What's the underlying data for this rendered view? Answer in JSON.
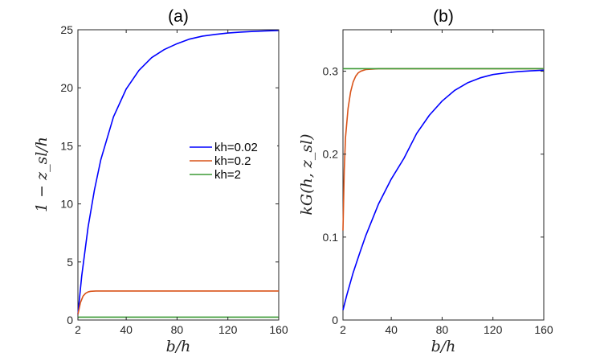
{
  "figure": {
    "background": "#ffffff"
  },
  "legend_entries": [
    "kh=0.02",
    "kh=0.2",
    "kh=2"
  ],
  "chart_data": [
    {
      "type": "line",
      "title": "(a)",
      "xlabel": "b/h",
      "ylabel": "1 − z_sl/h",
      "xlim": [
        2,
        160
      ],
      "ylim": [
        0,
        25
      ],
      "xticks": [
        2,
        40,
        80,
        120,
        160
      ],
      "xtick_labels": [
        "2",
        "40",
        "80",
        "120",
        "160"
      ],
      "yticks": [
        0,
        5,
        10,
        15,
        20,
        25
      ],
      "ytick_labels": [
        "0",
        "5",
        "10",
        "15",
        "20",
        "25"
      ],
      "grid": false,
      "legend_position": "right-middle",
      "series": [
        {
          "name": "kh=0.02",
          "color": "#0000ff",
          "x": [
            2,
            5,
            10,
            15,
            20,
            30,
            40,
            50,
            60,
            70,
            80,
            90,
            100,
            110,
            120,
            130,
            140,
            150,
            160
          ],
          "y": [
            0.5,
            3.8,
            8.0,
            11.2,
            13.8,
            17.5,
            19.9,
            21.5,
            22.6,
            23.3,
            23.8,
            24.2,
            24.45,
            24.6,
            24.72,
            24.8,
            24.86,
            24.9,
            24.93
          ]
        },
        {
          "name": "kh=0.2",
          "color": "#d95319",
          "x": [
            2,
            4,
            6,
            8,
            10,
            12,
            16,
            20,
            40,
            80,
            120,
            160
          ],
          "y": [
            0.5,
            1.5,
            2.05,
            2.3,
            2.42,
            2.47,
            2.5,
            2.5,
            2.5,
            2.5,
            2.5,
            2.5
          ]
        },
        {
          "name": "kh=2",
          "color": "#3b9a35",
          "x": [
            2,
            3,
            4,
            6,
            160
          ],
          "y": [
            0.22,
            0.25,
            0.25,
            0.25,
            0.25
          ]
        }
      ]
    },
    {
      "type": "line",
      "title": "(b)",
      "xlabel": "b/h",
      "ylabel": "kG(h, z_sl)",
      "xlim": [
        2,
        160
      ],
      "ylim": [
        0,
        0.35
      ],
      "xticks": [
        2,
        40,
        80,
        120,
        160
      ],
      "xtick_labels": [
        "2",
        "40",
        "80",
        "120",
        "160"
      ],
      "yticks": [
        0,
        0.1,
        0.2,
        0.3
      ],
      "ytick_labels": [
        "0",
        "0.1",
        "0.2",
        "0.3"
      ],
      "grid": false,
      "series": [
        {
          "name": "kh=0.02",
          "color": "#0000ff",
          "x": [
            2,
            5,
            10,
            15,
            20,
            30,
            40,
            50,
            60,
            70,
            80,
            90,
            100,
            110,
            120,
            130,
            140,
            150,
            160
          ],
          "y": [
            0.012,
            0.03,
            0.057,
            0.08,
            0.102,
            0.14,
            0.17,
            0.195,
            0.225,
            0.247,
            0.264,
            0.277,
            0.286,
            0.292,
            0.296,
            0.298,
            0.2995,
            0.3005,
            0.3012
          ]
        },
        {
          "name": "kh=0.2",
          "color": "#d95319",
          "x": [
            2,
            3,
            4,
            6,
            8,
            10,
            12,
            14,
            16,
            18,
            20,
            25,
            30,
            40,
            80,
            120,
            160
          ],
          "y": [
            0.108,
            0.18,
            0.22,
            0.255,
            0.275,
            0.287,
            0.294,
            0.298,
            0.3,
            0.301,
            0.302,
            0.3025,
            0.303,
            0.303,
            0.303,
            0.303,
            0.303
          ]
        },
        {
          "name": "kh=2",
          "color": "#3b9a35",
          "x": [
            2,
            160
          ],
          "y": [
            0.303,
            0.303
          ]
        }
      ]
    }
  ]
}
